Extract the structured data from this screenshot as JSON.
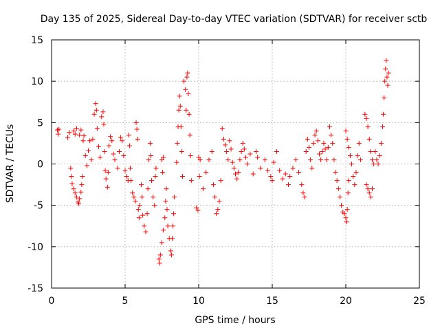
{
  "colors": {
    "series": "#ff0000",
    "axes": "#000000",
    "grid": "#a0a0a0"
  },
  "chart_data": {
    "type": "scatter",
    "title": "Day 135 of 2025, Sidereal Day-to-day VTEC variation (SDTVAR) for receiver sctb",
    "xlabel": "GPS time / hours",
    "ylabel": "SDTVAR / TECUs",
    "xlim": [
      0,
      25
    ],
    "ylim": [
      -15,
      15
    ],
    "xticks": [
      0,
      5,
      10,
      15,
      20,
      25
    ],
    "yticks": [
      -15,
      -10,
      -5,
      0,
      5,
      10,
      15
    ],
    "grid": true,
    "marker": "+",
    "series": [
      {
        "name": "SDTVAR",
        "points": [
          [
            0.4,
            4.1
          ],
          [
            0.45,
            3.6
          ],
          [
            0.5,
            4.2
          ],
          [
            1.1,
            3.2
          ],
          [
            1.2,
            3.8
          ],
          [
            1.3,
            -0.5
          ],
          [
            1.35,
            -1.5
          ],
          [
            1.4,
            -2.4
          ],
          [
            1.5,
            -3.0
          ],
          [
            1.6,
            -3.5
          ],
          [
            1.7,
            -4.0
          ],
          [
            1.8,
            -4.6
          ],
          [
            1.85,
            -4.8
          ],
          [
            1.9,
            -4.2
          ],
          [
            2.0,
            -3.4
          ],
          [
            2.05,
            -2.5
          ],
          [
            2.1,
            -1.5
          ],
          [
            2.15,
            2.8
          ],
          [
            2.2,
            3.4
          ],
          [
            1.5,
            4.0
          ],
          [
            1.6,
            3.6
          ],
          [
            1.7,
            4.3
          ],
          [
            1.9,
            3.5
          ],
          [
            2.0,
            4.1
          ],
          [
            2.3,
            1.0
          ],
          [
            2.4,
            -0.2
          ],
          [
            2.5,
            1.6
          ],
          [
            2.6,
            2.8
          ],
          [
            2.7,
            0.5
          ],
          [
            2.8,
            3.0
          ],
          [
            2.9,
            6.0
          ],
          [
            3.0,
            7.3
          ],
          [
            3.05,
            6.5
          ],
          [
            3.1,
            4.3
          ],
          [
            3.2,
            2.1
          ],
          [
            3.3,
            0.8
          ],
          [
            3.4,
            5.7
          ],
          [
            3.5,
            6.3
          ],
          [
            3.55,
            4.8
          ],
          [
            3.6,
            1.5
          ],
          [
            3.65,
            -0.8
          ],
          [
            3.7,
            -1.8
          ],
          [
            3.8,
            -2.8
          ],
          [
            3.85,
            -1.0
          ],
          [
            3.9,
            2.2
          ],
          [
            4.0,
            3.3
          ],
          [
            4.1,
            2.8
          ],
          [
            4.2,
            1.2
          ],
          [
            4.3,
            0.5
          ],
          [
            4.5,
            -0.5
          ],
          [
            4.6,
            1.5
          ],
          [
            4.7,
            3.2
          ],
          [
            4.8,
            2.8
          ],
          [
            4.9,
            1.0
          ],
          [
            5.0,
            -0.8
          ],
          [
            5.1,
            -1.5
          ],
          [
            5.2,
            -2.0
          ],
          [
            5.25,
            3.5
          ],
          [
            5.3,
            2.2
          ],
          [
            5.35,
            -0.5
          ],
          [
            5.4,
            -2.0
          ],
          [
            5.5,
            -3.5
          ],
          [
            5.6,
            -4.0
          ],
          [
            5.7,
            -4.5
          ],
          [
            5.75,
            5.0
          ],
          [
            5.8,
            4.2
          ],
          [
            5.85,
            3.0
          ],
          [
            5.9,
            -5.5
          ],
          [
            5.95,
            -6.5
          ],
          [
            6.0,
            -5.0
          ],
          [
            6.1,
            -2.5
          ],
          [
            6.15,
            -4.0
          ],
          [
            6.2,
            -6.2
          ],
          [
            6.3,
            -7.5
          ],
          [
            6.4,
            -8.2
          ],
          [
            6.5,
            -6.0
          ],
          [
            6.55,
            -3.0
          ],
          [
            6.6,
            0.5
          ],
          [
            6.7,
            2.5
          ],
          [
            6.75,
            1.0
          ],
          [
            6.8,
            -2.0
          ],
          [
            6.9,
            -4.0
          ],
          [
            7.0,
            -5.0
          ],
          [
            7.05,
            -1.5
          ],
          [
            7.1,
            -0.5
          ],
          [
            7.3,
            -11.5
          ],
          [
            7.35,
            -12.0
          ],
          [
            7.4,
            -11.0
          ],
          [
            7.5,
            -9.5
          ],
          [
            7.6,
            -8.0
          ],
          [
            7.7,
            -6.5
          ],
          [
            7.75,
            -4.5
          ],
          [
            7.8,
            -3.0
          ],
          [
            7.85,
            -5.5
          ],
          [
            7.9,
            -7.5
          ],
          [
            8.0,
            -9.0
          ],
          [
            8.1,
            -10.5
          ],
          [
            8.15,
            -11.0
          ],
          [
            8.2,
            -9.0
          ],
          [
            8.25,
            -7.5
          ],
          [
            8.3,
            -6.0
          ],
          [
            8.35,
            -4.0
          ],
          [
            7.5,
            0.5
          ],
          [
            7.55,
            -1.0
          ],
          [
            7.6,
            0.8
          ],
          [
            8.5,
            0.2
          ],
          [
            8.55,
            2.5
          ],
          [
            8.6,
            4.5
          ],
          [
            8.65,
            6.5
          ],
          [
            8.7,
            8.2
          ],
          [
            8.75,
            7.0
          ],
          [
            8.8,
            4.5
          ],
          [
            8.85,
            1.5
          ],
          [
            8.9,
            -1.5
          ],
          [
            9.0,
            10.0
          ],
          [
            9.1,
            9.0
          ],
          [
            9.15,
            6.5
          ],
          [
            9.2,
            10.5
          ],
          [
            9.25,
            11.0
          ],
          [
            9.3,
            8.5
          ],
          [
            9.35,
            6.0
          ],
          [
            9.4,
            3.5
          ],
          [
            9.45,
            1.0
          ],
          [
            9.5,
            -2.0
          ],
          [
            9.85,
            -5.3
          ],
          [
            9.95,
            -5.6
          ],
          [
            10.0,
            0.8
          ],
          [
            10.1,
            0.5
          ],
          [
            10.05,
            -1.5
          ],
          [
            10.3,
            -3.0
          ],
          [
            10.5,
            -1.0
          ],
          [
            10.7,
            0.5
          ],
          [
            10.9,
            1.5
          ],
          [
            11.0,
            -2.5
          ],
          [
            11.1,
            -4.0
          ],
          [
            11.2,
            -6.0
          ],
          [
            11.3,
            -5.5
          ],
          [
            11.4,
            -4.5
          ],
          [
            11.5,
            -2.0
          ],
          [
            11.6,
            4.3
          ],
          [
            11.7,
            3.0
          ],
          [
            11.8,
            2.3
          ],
          [
            11.9,
            1.5
          ],
          [
            12.0,
            0.5
          ],
          [
            12.1,
            2.8
          ],
          [
            12.2,
            1.8
          ],
          [
            12.3,
            0.2
          ],
          [
            12.4,
            -0.5
          ],
          [
            12.5,
            -1.2
          ],
          [
            12.6,
            -1.8
          ],
          [
            12.7,
            -1.0
          ],
          [
            12.8,
            0.5
          ],
          [
            12.9,
            1.5
          ],
          [
            13.0,
            2.5
          ],
          [
            13.1,
            1.8
          ],
          [
            13.2,
            0.8
          ],
          [
            13.3,
            0.0
          ],
          [
            13.5,
            1.2
          ],
          [
            13.7,
            -1.2
          ],
          [
            13.9,
            1.5
          ],
          [
            14.0,
            0.8
          ],
          [
            14.2,
            -0.5
          ],
          [
            14.5,
            0.5
          ],
          [
            14.7,
            -0.8
          ],
          [
            14.9,
            -1.5
          ],
          [
            15.0,
            -2.0
          ],
          [
            15.1,
            0.2
          ],
          [
            15.3,
            1.5
          ],
          [
            15.5,
            -0.8
          ],
          [
            15.7,
            -1.8
          ],
          [
            15.9,
            -1.2
          ],
          [
            16.1,
            -2.5
          ],
          [
            16.2,
            -1.5
          ],
          [
            16.4,
            -0.5
          ],
          [
            16.6,
            0.5
          ],
          [
            16.8,
            -1.0
          ],
          [
            17.0,
            -2.5
          ],
          [
            17.1,
            -3.5
          ],
          [
            17.2,
            -4.0
          ],
          [
            17.3,
            1.5
          ],
          [
            17.4,
            3.0
          ],
          [
            17.5,
            2.0
          ],
          [
            17.6,
            0.5
          ],
          [
            17.7,
            -0.5
          ],
          [
            17.8,
            2.5
          ],
          [
            17.9,
            3.5
          ],
          [
            18.0,
            4.0
          ],
          [
            18.1,
            2.8
          ],
          [
            18.2,
            1.2
          ],
          [
            18.3,
            0.5
          ],
          [
            18.4,
            1.5
          ],
          [
            18.5,
            2.5
          ],
          [
            18.6,
            1.8
          ],
          [
            18.7,
            0.5
          ],
          [
            18.8,
            2.0
          ],
          [
            18.9,
            4.5
          ],
          [
            19.0,
            3.5
          ],
          [
            19.1,
            2.5
          ],
          [
            19.2,
            0.5
          ],
          [
            19.3,
            -1.0
          ],
          [
            19.4,
            -2.0
          ],
          [
            19.5,
            -3.0
          ],
          [
            19.6,
            -4.0
          ],
          [
            19.7,
            -5.0
          ],
          [
            19.8,
            -5.8
          ],
          [
            19.9,
            -6.0
          ],
          [
            20.0,
            -6.5
          ],
          [
            20.05,
            -7.0
          ],
          [
            20.1,
            -5.5
          ],
          [
            20.15,
            -3.5
          ],
          [
            20.2,
            -2.0
          ],
          [
            20.0,
            4.0
          ],
          [
            20.1,
            3.0
          ],
          [
            20.2,
            2.0
          ],
          [
            20.3,
            1.0
          ],
          [
            20.4,
            0.0
          ],
          [
            20.5,
            -1.5
          ],
          [
            20.6,
            -2.5
          ],
          [
            20.7,
            -1.0
          ],
          [
            20.8,
            1.0
          ],
          [
            20.9,
            2.5
          ],
          [
            21.0,
            0.5
          ],
          [
            21.3,
            6.0
          ],
          [
            21.4,
            5.5
          ],
          [
            21.5,
            4.5
          ],
          [
            21.6,
            3.0
          ],
          [
            21.7,
            1.5
          ],
          [
            21.8,
            0.5
          ],
          [
            21.4,
            -2.5
          ],
          [
            21.5,
            -3.0
          ],
          [
            21.6,
            -3.5
          ],
          [
            21.7,
            -4.0
          ],
          [
            21.8,
            -3.0
          ],
          [
            21.9,
            0.0
          ],
          [
            22.0,
            1.5
          ],
          [
            22.1,
            0.5
          ],
          [
            22.2,
            0.0
          ],
          [
            22.3,
            1.0
          ],
          [
            22.4,
            2.5
          ],
          [
            22.5,
            4.5
          ],
          [
            22.55,
            6.0
          ],
          [
            22.6,
            8.0
          ],
          [
            22.65,
            10.0
          ],
          [
            22.7,
            11.5
          ],
          [
            22.75,
            12.5
          ],
          [
            22.8,
            10.5
          ],
          [
            22.85,
            9.5
          ],
          [
            22.9,
            11.0
          ]
        ]
      }
    ]
  }
}
